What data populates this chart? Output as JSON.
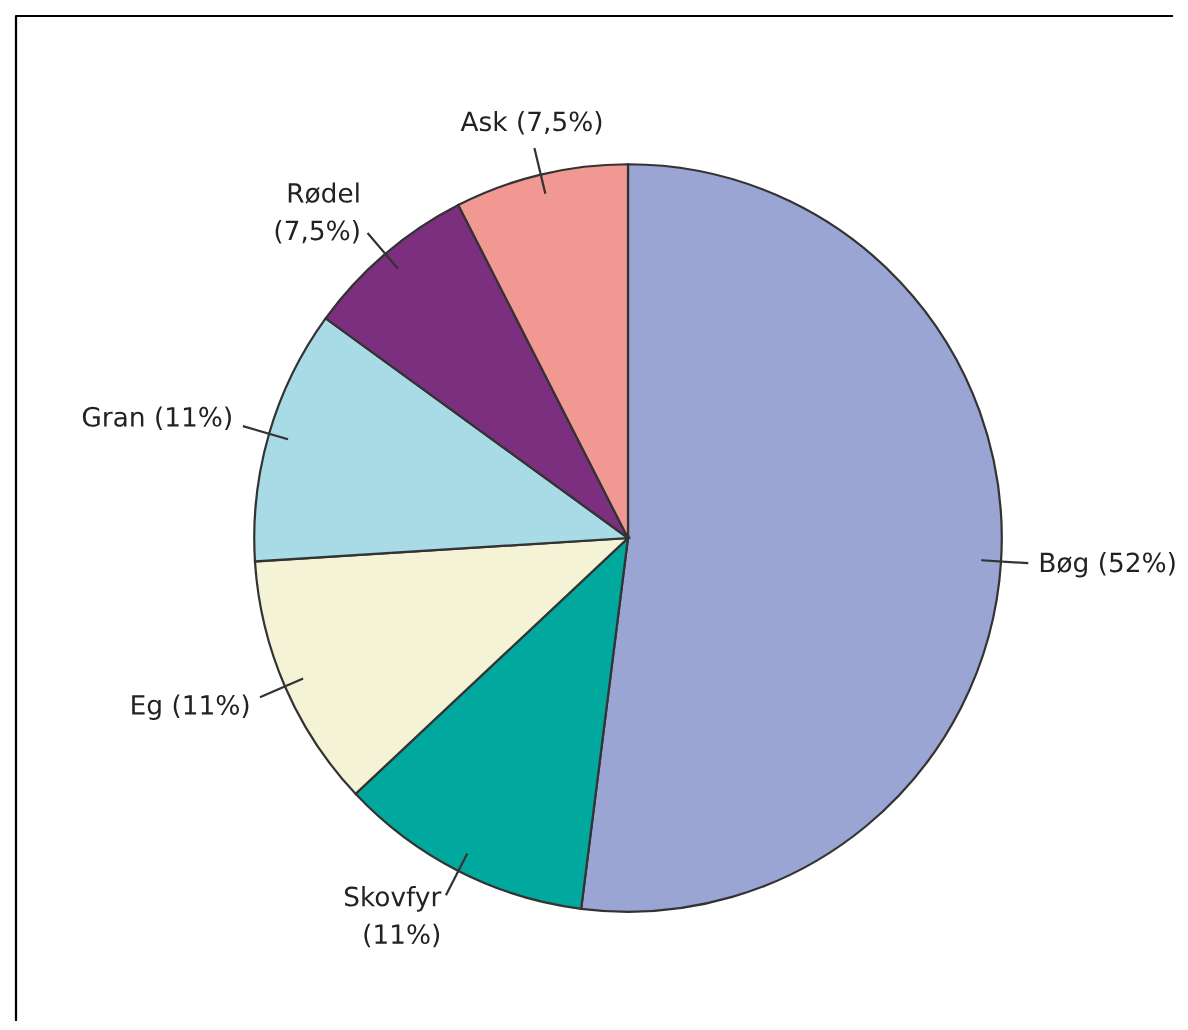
{
  "chart_data": {
    "type": "pie",
    "categories": [
      "Bøg",
      "Skovfyr",
      "Eg",
      "Gran",
      "Rødel",
      "Ask"
    ],
    "values": [
      52,
      11,
      11,
      11,
      7.5,
      7.5
    ],
    "value_labels": [
      "(52%)",
      "(11%)",
      "(11%)",
      "(11%)",
      "(7,5%)",
      "(7,5%)"
    ],
    "colors": [
      "#9aa5d4",
      "#00a89d",
      "#f5f3d6",
      "#a9dbe6",
      "#7b2f7e",
      "#f29892"
    ],
    "legend": false
  }
}
